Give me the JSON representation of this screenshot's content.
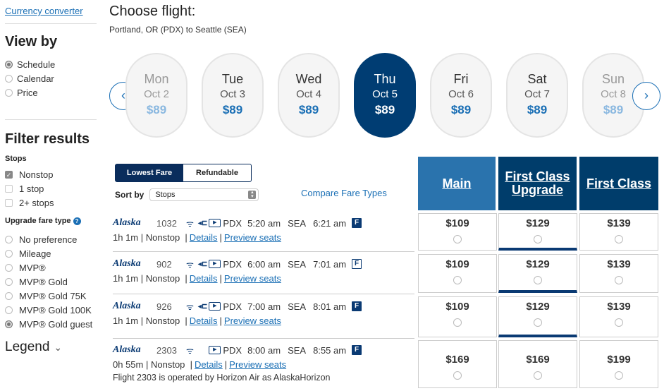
{
  "sidebar": {
    "currency_link": "Currency converter",
    "view_by_title": "View by",
    "view_by": [
      {
        "label": "Schedule",
        "selected": true
      },
      {
        "label": "Calendar",
        "selected": false
      },
      {
        "label": "Price",
        "selected": false
      }
    ],
    "filter_title": "Filter results",
    "stops_label": "Stops",
    "stops": [
      {
        "label": "Nonstop",
        "checked": true
      },
      {
        "label": "1 stop",
        "checked": false
      },
      {
        "label": "2+ stops",
        "checked": false
      }
    ],
    "upgrade_label": "Upgrade fare type",
    "help_icon": "?",
    "upgrade_types": [
      {
        "label": "No preference",
        "selected": false
      },
      {
        "label": "Mileage",
        "selected": false
      },
      {
        "label": "MVP®",
        "selected": false
      },
      {
        "label": "MVP® Gold",
        "selected": false
      },
      {
        "label": "MVP® Gold 75K",
        "selected": false
      },
      {
        "label": "MVP® Gold 100K",
        "selected": false
      },
      {
        "label": "MVP® Gold guest",
        "selected": true
      }
    ],
    "legend": "Legend",
    "legend_chevron": "⌄"
  },
  "header": {
    "title": "Choose flight:",
    "route": "Portland, OR (PDX) to Seattle (SEA)"
  },
  "carousel": {
    "prev": "‹",
    "next": "›",
    "days": [
      {
        "day": "Mon",
        "date": "Oct 2",
        "price": "$89"
      },
      {
        "day": "Tue",
        "date": "Oct 3",
        "price": "$89"
      },
      {
        "day": "Wed",
        "date": "Oct 4",
        "price": "$89"
      },
      {
        "day": "Thu",
        "date": "Oct 5",
        "price": "$89",
        "selected": true
      },
      {
        "day": "Fri",
        "date": "Oct 6",
        "price": "$89"
      },
      {
        "day": "Sat",
        "date": "Oct 7",
        "price": "$89"
      },
      {
        "day": "Sun",
        "date": "Oct 8",
        "price": "$89"
      }
    ]
  },
  "fare_toggle": {
    "lowest": "Lowest Fare",
    "refundable": "Refundable"
  },
  "sort": {
    "label": "Sort by",
    "value": "Stops"
  },
  "compare_link": "Compare Fare Types",
  "fare_headers": {
    "main": "Main",
    "fcu_line1": "First Class",
    "fcu_line2": "Upgrade",
    "first": "First Class"
  },
  "colors": {
    "main_header": "#2a73ad",
    "first_header": "#003d6b",
    "selected_day": "#003d73"
  },
  "flights": [
    {
      "airline": "Alaska",
      "number": "1032",
      "power": true,
      "dep": "PDX",
      "dep_time": "5:20 am",
      "arr": "SEA",
      "arr_time": "6:21 am",
      "badge": "F",
      "duration": "1h 1m",
      "stops": "Nonstop",
      "details": "Details",
      "seats": "Preview seats",
      "prices": [
        "$109",
        "$129",
        "$139"
      ]
    },
    {
      "airline": "Alaska",
      "number": "902",
      "power": true,
      "dep": "PDX",
      "dep_time": "6:00 am",
      "arr": "SEA",
      "arr_time": "7:01 am",
      "badge": "F",
      "duration": "1h 1m",
      "stops": "Nonstop",
      "details": "Details",
      "seats": "Preview seats",
      "prices": [
        "$109",
        "$129",
        "$139"
      ]
    },
    {
      "airline": "Alaska",
      "number": "926",
      "power": true,
      "dep": "PDX",
      "dep_time": "7:00 am",
      "arr": "SEA",
      "arr_time": "8:01 am",
      "badge": "F",
      "duration": "1h 1m",
      "stops": "Nonstop",
      "details": "Details",
      "seats": "Preview seats",
      "prices": [
        "$109",
        "$129",
        "$139"
      ]
    },
    {
      "airline": "Alaska",
      "number": "2303",
      "power": false,
      "dep": "PDX",
      "dep_time": "8:00 am",
      "arr": "SEA",
      "arr_time": "8:55 am",
      "badge": "F",
      "duration": "0h 55m",
      "stops": "Nonstop",
      "details": "Details",
      "seats": "Preview seats",
      "note": "Flight 2303 is operated by Horizon Air as AlaskaHorizon",
      "prices": [
        "$169",
        "$169",
        "$199"
      ]
    }
  ]
}
